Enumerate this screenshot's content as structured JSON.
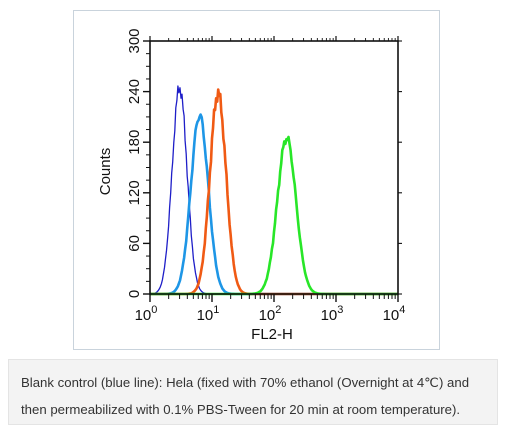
{
  "chart_data": {
    "type": "line",
    "xlabel": "FL2-H",
    "ylabel": "Counts",
    "xscale": "log",
    "xlim": [
      1,
      10000
    ],
    "ylim": [
      0,
      300
    ],
    "x_ticks": [
      {
        "base": "10",
        "exp": "0"
      },
      {
        "base": "10",
        "exp": "1"
      },
      {
        "base": "10",
        "exp": "2"
      },
      {
        "base": "10",
        "exp": "3"
      },
      {
        "base": "10",
        "exp": "4"
      }
    ],
    "y_ticks": [
      "0",
      "60",
      "120",
      "180",
      "240",
      "300"
    ],
    "y_tick_values": [
      0,
      60,
      120,
      180,
      240,
      300
    ],
    "grid": false,
    "series": [
      {
        "color": "#1e1ec8",
        "stroke": 1.3,
        "peak_x": 3.0,
        "peak_y": 245,
        "sigma_decades": 0.12
      },
      {
        "color": "#1e96e6",
        "stroke": 2.6,
        "peak_x": 6.3,
        "peak_y": 212,
        "sigma_decades": 0.14
      },
      {
        "color": "#f05a14",
        "stroke": 2.6,
        "peak_x": 12.5,
        "peak_y": 238,
        "sigma_decades": 0.13
      },
      {
        "color": "#28e628",
        "stroke": 2.6,
        "peak_x": 160,
        "peak_y": 185,
        "sigma_decades": 0.15
      }
    ]
  },
  "caption": {
    "line1": "Blank control (blue line): Hela (fixed with 70% ethanol (Overnight at 4℃) and",
    "line2": "then permeabilized with 0.1% PBS-Tween for 20 min at room temperature)."
  }
}
